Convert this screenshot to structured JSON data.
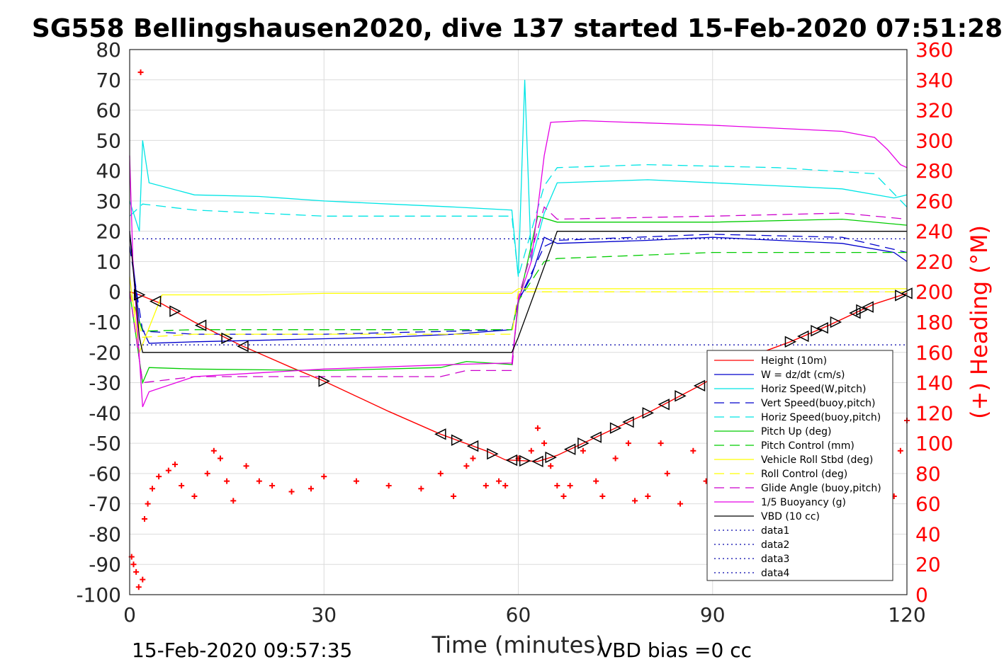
{
  "chart_data": {
    "type": "line",
    "title": "SG558 Bellingshausen2020, dive 137 started 15-Feb-2020 07:51:28",
    "xlabel": "Time (minutes)",
    "ylabel_right": "(+) Heading (°M)",
    "xlim": [
      0,
      120
    ],
    "ylim": [
      -100,
      80
    ],
    "ylim_right": [
      0,
      360
    ],
    "x_ticks": [
      "0",
      "30",
      "60",
      "90",
      "120"
    ],
    "y_ticks": [
      "80",
      "70",
      "60",
      "50",
      "40",
      "30",
      "20",
      "10",
      "0",
      "-10",
      "-20",
      "-30",
      "-40",
      "-50",
      "-60",
      "-70",
      "-80",
      "-90",
      "-100"
    ],
    "y_right_ticks": [
      "360",
      "340",
      "320",
      "300",
      "280",
      "260",
      "240",
      "220",
      "200",
      "180",
      "160",
      "140",
      "120",
      "100",
      "80",
      "60",
      "40",
      "20",
      "0"
    ],
    "grid": true,
    "legend_position": "bottom-right",
    "footer_left": "15-Feb-2020 09:57:35",
    "footer_right": "VBD bias =0 cc",
    "colors": {
      "height": "#ff0000",
      "w": "#0000cc",
      "hspeed_w": "#00e5e5",
      "vspeed_buoy": "#0000cc",
      "hspeed_buoy": "#00e5e5",
      "pitch": "#00cc00",
      "pitch_ctrl": "#00cc00",
      "roll": "#ffff00",
      "roll_ctrl": "#ffff00",
      "glide": "#cc00cc",
      "buoyancy": "#e500e5",
      "vbd": "#000000",
      "heading": "#ff0000",
      "data": "#0000aa"
    },
    "series": [
      {
        "name": "Height (10m)",
        "key": "height",
        "style": "solid",
        "x": [
          0,
          1.5,
          5,
          10,
          17,
          25,
          30,
          40,
          48,
          55,
          58,
          63,
          66,
          70,
          80,
          88,
          95,
          102,
          108,
          115,
          120
        ],
        "y": [
          0,
          -1,
          -4,
          -10,
          -17.5,
          -25,
          -29.5,
          -39.5,
          -47,
          -52.5,
          -55.5,
          -56,
          -54,
          -50,
          -40,
          -31,
          -22,
          -16.5,
          -11,
          -4,
          -0.5
        ]
      },
      {
        "name": "W = dz/dt (cm/s)",
        "key": "w",
        "style": "solid",
        "x": [
          0,
          1.5,
          3,
          10,
          20,
          30,
          40,
          50,
          59,
          60,
          62,
          64,
          66,
          80,
          90,
          100,
          110,
          118,
          120
        ],
        "y": [
          20,
          -10,
          -17,
          -16.5,
          -16,
          -15.5,
          -15,
          -14,
          -12.5,
          -3,
          5,
          18,
          16,
          17,
          18,
          17,
          16,
          13,
          10
        ]
      },
      {
        "name": "Horiz Speed(W,pitch)",
        "key": "hspeed_w",
        "style": "solid",
        "x": [
          0,
          1.5,
          2,
          3,
          10,
          20,
          30,
          40,
          50,
          59,
          60,
          61,
          62,
          64,
          66,
          80,
          90,
          100,
          110,
          118,
          120
        ],
        "y": [
          30,
          20,
          50,
          36,
          32,
          31.5,
          30,
          29,
          28,
          27,
          5,
          70,
          10,
          26,
          36,
          37,
          36,
          35,
          34,
          31,
          32
        ]
      },
      {
        "name": "Vert Speed(buoy,pitch)",
        "key": "vspeed_buoy",
        "style": "dashed",
        "x": [
          0,
          2,
          10,
          30,
          50,
          59,
          60,
          64,
          66,
          90,
          110,
          120
        ],
        "y": [
          15,
          -13,
          -14,
          -14,
          -13,
          -12.5,
          -3,
          15,
          17,
          19,
          18,
          13
        ]
      },
      {
        "name": "Horiz Speed(buoy,pitch)",
        "key": "hspeed_buoy",
        "style": "dashed",
        "x": [
          0,
          2,
          10,
          30,
          50,
          59,
          60,
          64,
          66,
          80,
          100,
          115,
          120
        ],
        "y": [
          25,
          29,
          27,
          25,
          25,
          25,
          5,
          35,
          41,
          42,
          41,
          39,
          28
        ]
      },
      {
        "name": "Pitch Up (deg)",
        "key": "pitch",
        "style": "solid",
        "x": [
          0,
          2,
          3,
          10,
          30,
          48,
          52,
          59,
          60,
          63,
          66,
          90,
          110,
          120
        ],
        "y": [
          0,
          -30,
          -25,
          -25.5,
          -26,
          -25,
          -23,
          -24,
          -4,
          25,
          23,
          23,
          24,
          22
        ]
      },
      {
        "name": "Pitch Control (mm)",
        "key": "pitch_ctrl",
        "style": "dashed",
        "x": [
          0,
          2,
          10,
          30,
          59,
          60,
          64,
          66,
          90,
          110,
          120
        ],
        "y": [
          0,
          -13,
          -12.5,
          -12.5,
          -12.5,
          -3,
          10,
          11,
          13,
          13,
          13
        ]
      },
      {
        "name": "Vehicle Roll Stbd (deg)",
        "key": "roll",
        "style": "solid",
        "x": [
          0,
          1.5,
          5,
          10,
          20,
          30,
          40,
          50,
          59,
          60,
          70,
          80,
          90,
          100,
          110,
          120
        ],
        "y": [
          5,
          -20,
          -1,
          -1,
          -1,
          -0.5,
          -0.5,
          -0.5,
          -0.5,
          1,
          1,
          1,
          1,
          1,
          1,
          1
        ]
      },
      {
        "name": "Roll Control (deg)",
        "key": "roll_ctrl",
        "style": "dashed",
        "x": [
          0,
          2,
          10,
          30,
          59,
          60,
          90,
          120
        ],
        "y": [
          0,
          -15,
          -14,
          -14,
          -14,
          0,
          0,
          0
        ]
      },
      {
        "name": "Glide Angle (buoy,pitch)",
        "key": "glide",
        "style": "dashed",
        "x": [
          0,
          2,
          10,
          30,
          48,
          52,
          59,
          60,
          64,
          66,
          90,
          110,
          120
        ],
        "y": [
          0,
          -30,
          -28,
          -28,
          -28,
          -26,
          -26,
          -2,
          28,
          24,
          25,
          26,
          24
        ]
      },
      {
        "name": "1/5 Buoyancy (g)",
        "key": "buoyancy",
        "style": "solid",
        "x": [
          0,
          0.5,
          2,
          3,
          10,
          30,
          50,
          59,
          60,
          62,
          64,
          65,
          70,
          90,
          110,
          115,
          117,
          119,
          120
        ],
        "y": [
          45,
          10,
          -38,
          -33,
          -28,
          -25.5,
          -24,
          -23.5,
          -3,
          10,
          45,
          56,
          56.5,
          55,
          53,
          51,
          47,
          42,
          41
        ]
      },
      {
        "name": "VBD (10 cc)",
        "key": "vbd",
        "style": "solid",
        "x": [
          0,
          1.5,
          2,
          59,
          60,
          66,
          90,
          120
        ],
        "y": [
          20,
          -15,
          -20,
          -20,
          -15,
          20,
          20,
          20
        ]
      },
      {
        "name": "data1",
        "key": "data",
        "style": "dotted",
        "x": [],
        "y": []
      },
      {
        "name": "data2",
        "key": "data",
        "style": "dotted",
        "x": [],
        "y": []
      },
      {
        "name": "data3",
        "key": "data",
        "style": "dotted",
        "x": [
          0,
          120
        ],
        "y": [
          17.5,
          17.5
        ]
      },
      {
        "name": "data4",
        "key": "data",
        "style": "dotted",
        "x": [
          0,
          120
        ],
        "y": [
          -17.5,
          -17.5
        ]
      }
    ],
    "heading": {
      "axis": "right",
      "x": [
        0.3,
        0.6,
        1,
        1.4,
        1.7,
        2,
        2.3,
        2.8,
        3.5,
        4.5,
        6,
        7,
        8,
        10,
        12,
        13,
        14,
        15,
        16,
        18,
        20,
        22,
        25,
        28,
        30,
        35,
        40,
        45,
        48,
        50,
        52,
        53,
        55,
        57,
        58,
        60,
        62,
        63,
        64,
        65,
        66,
        67,
        68,
        70,
        72,
        73,
        75,
        77,
        78,
        80,
        82,
        83,
        85,
        87,
        89,
        90,
        92,
        94,
        96,
        98,
        100,
        102,
        104,
        106,
        108,
        110,
        112,
        114,
        116,
        117,
        118,
        119,
        120
      ],
      "y": [
        25,
        20,
        15,
        5,
        345,
        10,
        50,
        60,
        70,
        78,
        82,
        86,
        72,
        65,
        80,
        95,
        90,
        75,
        62,
        85,
        75,
        72,
        68,
        70,
        78,
        75,
        72,
        70,
        80,
        65,
        85,
        90,
        72,
        75,
        72,
        90,
        95,
        110,
        100,
        85,
        72,
        65,
        72,
        95,
        75,
        65,
        90,
        100,
        62,
        65,
        100,
        80,
        60,
        95,
        75,
        65,
        98,
        70,
        80,
        65,
        85,
        75,
        70,
        80,
        65,
        70,
        70,
        65,
        75,
        60,
        65,
        95,
        115
      ]
    },
    "markers": {
      "note": "black triangle markers on the Height curve",
      "x": [
        1.5,
        4,
        7,
        11,
        15,
        17.5,
        30,
        48,
        50.5,
        53,
        56,
        59,
        61,
        63,
        65,
        68,
        70,
        72,
        75,
        77,
        80,
        82.5,
        85,
        88,
        102,
        104,
        106,
        107,
        109,
        112,
        113,
        114,
        119,
        120
      ]
    }
  }
}
